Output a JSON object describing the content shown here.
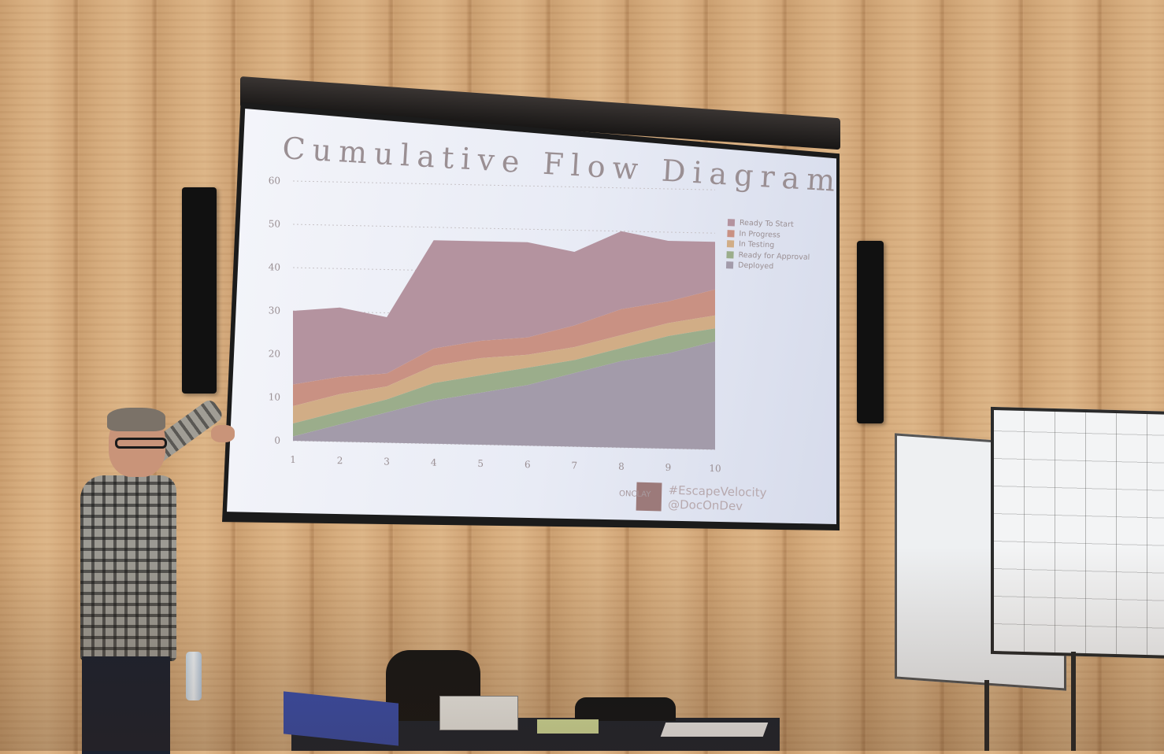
{
  "slide": {
    "title": "Cumulative Flow Diagram",
    "footer_text": "#EscapeVelocity @DocOnDev",
    "footer_logo_text": "ONCLAY"
  },
  "chart_data": {
    "type": "area",
    "title": "Cumulative Flow Diagram",
    "xlabel": "",
    "ylabel": "",
    "x": [
      1,
      2,
      3,
      4,
      5,
      6,
      7,
      8,
      9,
      10
    ],
    "ylim": [
      0,
      60
    ],
    "yticks": [
      0,
      10,
      20,
      30,
      40,
      50,
      60
    ],
    "stacked": true,
    "legend_position": "right",
    "grid": "horizontal dotted",
    "series": [
      {
        "name": "Deployed",
        "color": "#a39baa",
        "values": [
          1,
          4,
          7,
          10,
          12,
          14,
          17,
          20,
          22,
          25
        ]
      },
      {
        "name": "Ready for Approval",
        "color": "#9bad8b",
        "values": [
          3,
          3,
          3,
          4,
          4,
          4,
          3,
          3,
          4,
          3
        ]
      },
      {
        "name": "In Testing",
        "color": "#d1ad86",
        "values": [
          4,
          4,
          3,
          4,
          4,
          3,
          3,
          3,
          3,
          3
        ]
      },
      {
        "name": "In Progress",
        "color": "#c99183",
        "values": [
          5,
          4,
          3,
          4,
          4,
          4,
          5,
          6,
          5,
          6
        ]
      },
      {
        "name": "Ready To Start",
        "color": "#b4939f",
        "values": [
          17,
          16,
          13,
          25,
          23,
          22,
          17,
          18,
          14,
          11
        ]
      }
    ],
    "legend_order": [
      "Ready To Start",
      "In Progress",
      "In Testing",
      "Ready for Approval",
      "Deployed"
    ]
  }
}
